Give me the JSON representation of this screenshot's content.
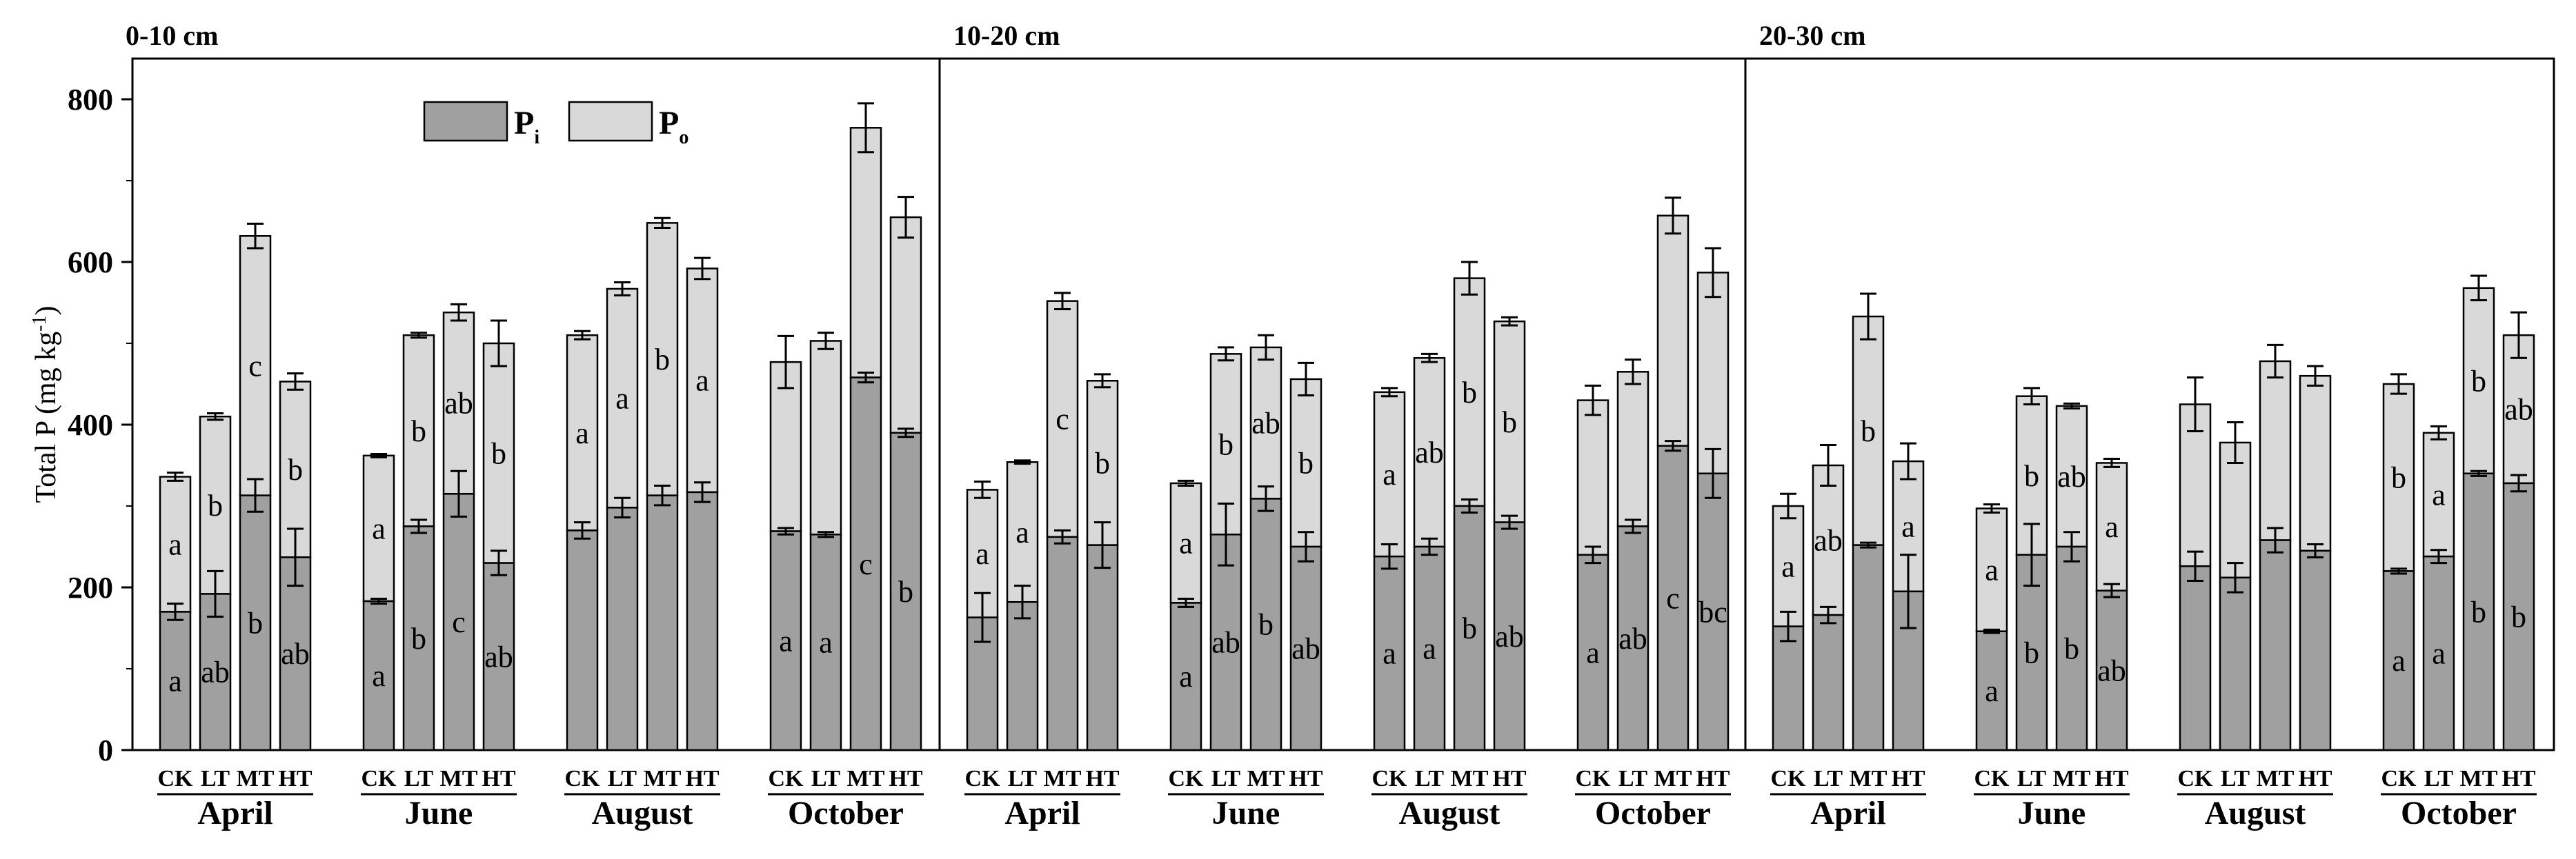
{
  "chart_data": {
    "type": "bar",
    "stacked": true,
    "ylabel": "Total P (mg kg",
    "ylabel_sup": "-1",
    "ylabel_close": ")",
    "ylim": [
      0,
      850
    ],
    "yticks": [
      "0",
      "200",
      "400",
      "600",
      "800"
    ],
    "ytick_values": [
      0,
      200,
      400,
      600,
      800
    ],
    "legend": {
      "placement": "top-left of first panel",
      "entries": [
        {
          "label": "P",
          "sub": "i",
          "color": "#a0a0a0"
        },
        {
          "label": "P",
          "sub": "o",
          "color": "#d9d9d9"
        }
      ]
    },
    "treatments": [
      "CK",
      "LT",
      "MT",
      "HT"
    ],
    "panels": [
      {
        "title": "0-10 cm",
        "months": [
          {
            "name": "April",
            "pi": [
              170,
              192,
              313,
              237
            ],
            "pi_err": [
              10,
              28,
              20,
              35
            ],
            "total": [
              336,
              410,
              632,
              453
            ],
            "total_err": [
              5,
              4,
              15,
              10
            ],
            "pi_letters": [
              "a",
              "ab",
              "b",
              "ab"
            ],
            "po_letters": [
              "a",
              "b",
              "c",
              "b"
            ]
          },
          {
            "name": "June",
            "pi": [
              183,
              275,
              315,
              230
            ],
            "pi_err": [
              3,
              8,
              28,
              15
            ],
            "total": [
              362,
              510,
              538,
              500
            ],
            "total_err": [
              2,
              3,
              10,
              28
            ],
            "pi_letters": [
              "a",
              "b",
              "c",
              "ab"
            ],
            "po_letters": [
              "a",
              "b",
              "ab",
              "b"
            ]
          },
          {
            "name": "August",
            "pi": [
              270,
              298,
              313,
              317
            ],
            "pi_err": [
              10,
              12,
              12,
              12
            ],
            "total": [
              510,
              567,
              648,
              592
            ],
            "total_err": [
              5,
              8,
              6,
              13
            ],
            "pi_letters": [
              "",
              "",
              "",
              ""
            ],
            "po_letters": [
              "a",
              "a",
              "b",
              "a"
            ]
          },
          {
            "name": "October",
            "pi": [
              269,
              265,
              458,
              390
            ],
            "pi_err": [
              4,
              3,
              6,
              5
            ],
            "total": [
              477,
              503,
              765,
              655
            ],
            "total_err": [
              32,
              10,
              30,
              25
            ],
            "pi_letters": [
              "a",
              "a",
              "c",
              "b"
            ],
            "po_letters": [
              "",
              "",
              "",
              ""
            ]
          }
        ]
      },
      {
        "title": "10-20 cm",
        "months": [
          {
            "name": "April",
            "pi": [
              163,
              182,
              262,
              252
            ],
            "pi_err": [
              30,
              20,
              8,
              28
            ],
            "total": [
              320,
              354,
              552,
              454
            ],
            "total_err": [
              10,
              2,
              10,
              8
            ],
            "pi_letters": [
              "",
              "",
              "",
              ""
            ],
            "po_letters": [
              "a",
              "a",
              "c",
              "b"
            ]
          },
          {
            "name": "June",
            "pi": [
              181,
              265,
              309,
              250
            ],
            "pi_err": [
              5,
              38,
              15,
              18
            ],
            "total": [
              328,
              487,
              495,
              456
            ],
            "total_err": [
              3,
              8,
              15,
              20
            ],
            "pi_letters": [
              "a",
              "ab",
              "b",
              "ab"
            ],
            "po_letters": [
              "a",
              "b",
              "ab",
              "b"
            ]
          },
          {
            "name": "August",
            "pi": [
              238,
              250,
              300,
              280
            ],
            "pi_err": [
              15,
              10,
              8,
              8
            ],
            "total": [
              440,
              482,
              580,
              527
            ],
            "total_err": [
              5,
              5,
              20,
              5
            ],
            "pi_letters": [
              "a",
              "a",
              "b",
              "ab"
            ],
            "po_letters": [
              "a",
              "ab",
              "b",
              "b"
            ]
          },
          {
            "name": "October",
            "pi": [
              240,
              275,
              374,
              340
            ],
            "pi_err": [
              10,
              8,
              6,
              30
            ],
            "total": [
              430,
              465,
              657,
              587
            ],
            "total_err": [
              18,
              15,
              22,
              30
            ],
            "pi_letters": [
              "a",
              "ab",
              "c",
              "bc"
            ],
            "po_letters": [
              "",
              "",
              "",
              ""
            ]
          }
        ]
      },
      {
        "title": "20-30 cm",
        "months": [
          {
            "name": "April",
            "pi": [
              152,
              166,
              252,
              195
            ],
            "pi_err": [
              18,
              10,
              3,
              45
            ],
            "total": [
              300,
              350,
              533,
              355
            ],
            "total_err": [
              15,
              25,
              28,
              22
            ],
            "pi_letters": [
              "",
              "",
              "",
              ""
            ],
            "po_letters": [
              "a",
              "ab",
              "b",
              "a"
            ]
          },
          {
            "name": "June",
            "pi": [
              146,
              240,
              250,
              196
            ],
            "pi_err": [
              2,
              38,
              18,
              8
            ],
            "total": [
              297,
              435,
              423,
              353
            ],
            "total_err": [
              5,
              10,
              3,
              5
            ],
            "pi_letters": [
              "a",
              "b",
              "b",
              "ab"
            ],
            "po_letters": [
              "a",
              "b",
              "ab",
              "a"
            ]
          },
          {
            "name": "August",
            "pi": [
              226,
              212,
              258,
              245
            ],
            "pi_err": [
              18,
              18,
              15,
              8
            ],
            "total": [
              425,
              378,
              478,
              460
            ],
            "total_err": [
              33,
              25,
              20,
              12
            ],
            "pi_letters": [
              "",
              "",
              "",
              ""
            ],
            "po_letters": [
              "",
              "",
              "",
              ""
            ]
          },
          {
            "name": "October",
            "pi": [
              220,
              238,
              340,
              328
            ],
            "pi_err": [
              3,
              8,
              3,
              10
            ],
            "total": [
              450,
              390,
              568,
              510
            ],
            "total_err": [
              12,
              8,
              15,
              28
            ],
            "pi_letters": [
              "a",
              "a",
              "b",
              "b"
            ],
            "po_letters": [
              "b",
              "a",
              "b",
              "ab"
            ]
          }
        ]
      }
    ]
  }
}
